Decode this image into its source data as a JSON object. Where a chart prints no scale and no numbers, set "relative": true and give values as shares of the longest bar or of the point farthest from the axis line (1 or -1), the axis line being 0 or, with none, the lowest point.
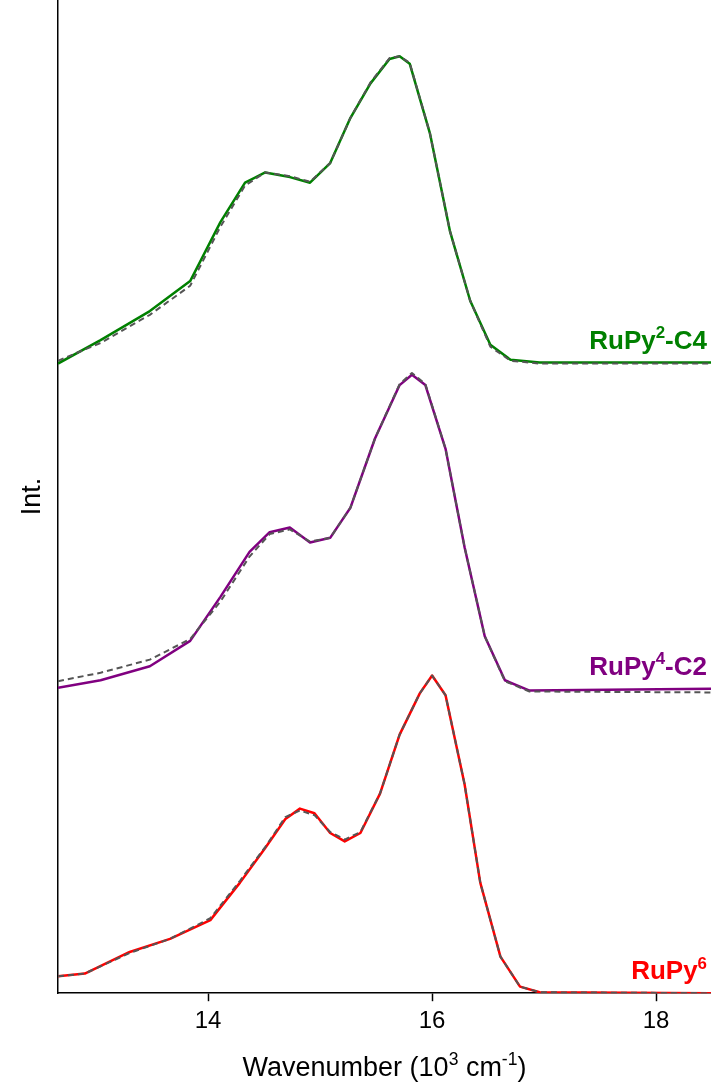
{
  "chart_data": {
    "type": "line",
    "xlabel": "Wavenumber (10$^{3}$ cm$^{-1}$)",
    "ylabel": "Int.",
    "relative": true,
    "xlim": [
      12.66,
      18.49
    ],
    "xticks": [
      14,
      16,
      18
    ],
    "legend": false,
    "grid": false,
    "series": [
      {
        "name": "RuPy$^{2}$-C4",
        "color": "#008000",
        "line_style": "solid",
        "x": [
          12.66,
          13.04,
          13.48,
          13.84,
          14.11,
          14.33,
          14.51,
          14.73,
          14.91,
          15.09,
          15.27,
          15.45,
          15.62,
          15.71,
          15.8,
          15.98,
          16.16,
          16.34,
          16.52,
          16.7,
          16.96,
          18.49
        ],
        "values": [
          0.672,
          0.697,
          0.728,
          0.76,
          0.823,
          0.865,
          0.876,
          0.871,
          0.865,
          0.886,
          0.934,
          0.971,
          0.997,
          1,
          0.992,
          0.918,
          0.813,
          0.739,
          0.692,
          0.676,
          0.673,
          0.673
        ]
      },
      {
        "color": "#555555",
        "line_style": "dashed",
        "x": [
          12.66,
          13.04,
          13.48,
          13.84,
          14.11,
          14.33,
          14.51,
          14.73,
          14.91,
          15.09,
          15.27,
          15.45,
          15.62,
          15.71,
          15.8,
          15.98,
          16.16,
          16.34,
          16.52,
          16.7,
          16.96,
          18.49
        ],
        "values": [
          0.675,
          0.694,
          0.724,
          0.755,
          0.818,
          0.862,
          0.876,
          0.872,
          0.866,
          0.886,
          0.934,
          0.972,
          0.998,
          1,
          0.993,
          0.918,
          0.813,
          0.739,
          0.69,
          0.675,
          0.672,
          0.672
        ]
      },
      {
        "name": "RuPy$^{4}$-C2",
        "color": "#800080",
        "line_style": "solid",
        "x": [
          12.66,
          13.04,
          13.48,
          13.84,
          14.11,
          14.37,
          14.55,
          14.73,
          14.91,
          15.09,
          15.27,
          15.49,
          15.71,
          15.82,
          15.94,
          16.12,
          16.29,
          16.47,
          16.65,
          16.87,
          18.49
        ],
        "values": [
          0.326,
          0.334,
          0.349,
          0.376,
          0.423,
          0.471,
          0.492,
          0.497,
          0.481,
          0.486,
          0.518,
          0.592,
          0.649,
          0.66,
          0.649,
          0.581,
          0.476,
          0.381,
          0.334,
          0.323,
          0.325
        ]
      },
      {
        "color": "#555555",
        "line_style": "dashed",
        "x": [
          12.66,
          13.04,
          13.48,
          13.84,
          14.11,
          14.37,
          14.55,
          14.73,
          14.91,
          15.09,
          15.27,
          15.49,
          15.71,
          15.82,
          15.94,
          16.12,
          16.29,
          16.47,
          16.65,
          16.87,
          18.49
        ],
        "values": [
          0.333,
          0.342,
          0.356,
          0.378,
          0.418,
          0.466,
          0.49,
          0.495,
          0.482,
          0.486,
          0.518,
          0.592,
          0.65,
          0.662,
          0.65,
          0.581,
          0.476,
          0.381,
          0.333,
          0.322,
          0.321
        ]
      },
      {
        "name": "RuPy$^{6}$",
        "color": "#ff0000",
        "line_style": "solid",
        "x": [
          12.66,
          12.9,
          13.3,
          13.66,
          14.02,
          14.285,
          14.51,
          14.69,
          14.82,
          14.95,
          15.09,
          15.22,
          15.36,
          15.535,
          15.71,
          15.89,
          16.0,
          16.12,
          16.29,
          16.43,
          16.61,
          16.785,
          16.96,
          18.49
        ],
        "values": [
          0.018,
          0.021,
          0.044,
          0.058,
          0.078,
          0.118,
          0.155,
          0.186,
          0.197,
          0.192,
          0.171,
          0.162,
          0.171,
          0.213,
          0.276,
          0.32,
          0.339,
          0.318,
          0.223,
          0.118,
          0.039,
          0.007,
          0.001,
          0
        ]
      },
      {
        "color": "#555555",
        "line_style": "dashed",
        "x": [
          12.66,
          12.9,
          13.3,
          13.66,
          14.02,
          14.285,
          14.51,
          14.69,
          14.82,
          14.95,
          15.09,
          15.22,
          15.36,
          15.535,
          15.71,
          15.89,
          16.0,
          16.12,
          16.29,
          16.43,
          16.61,
          16.785,
          16.96,
          18.49
        ],
        "values": [
          0.018,
          0.021,
          0.043,
          0.058,
          0.08,
          0.12,
          0.156,
          0.188,
          0.195,
          0.19,
          0.172,
          0.164,
          0.172,
          0.213,
          0.276,
          0.32,
          0.339,
          0.318,
          0.223,
          0.118,
          0.039,
          0.007,
          0.001,
          0
        ]
      }
    ]
  }
}
